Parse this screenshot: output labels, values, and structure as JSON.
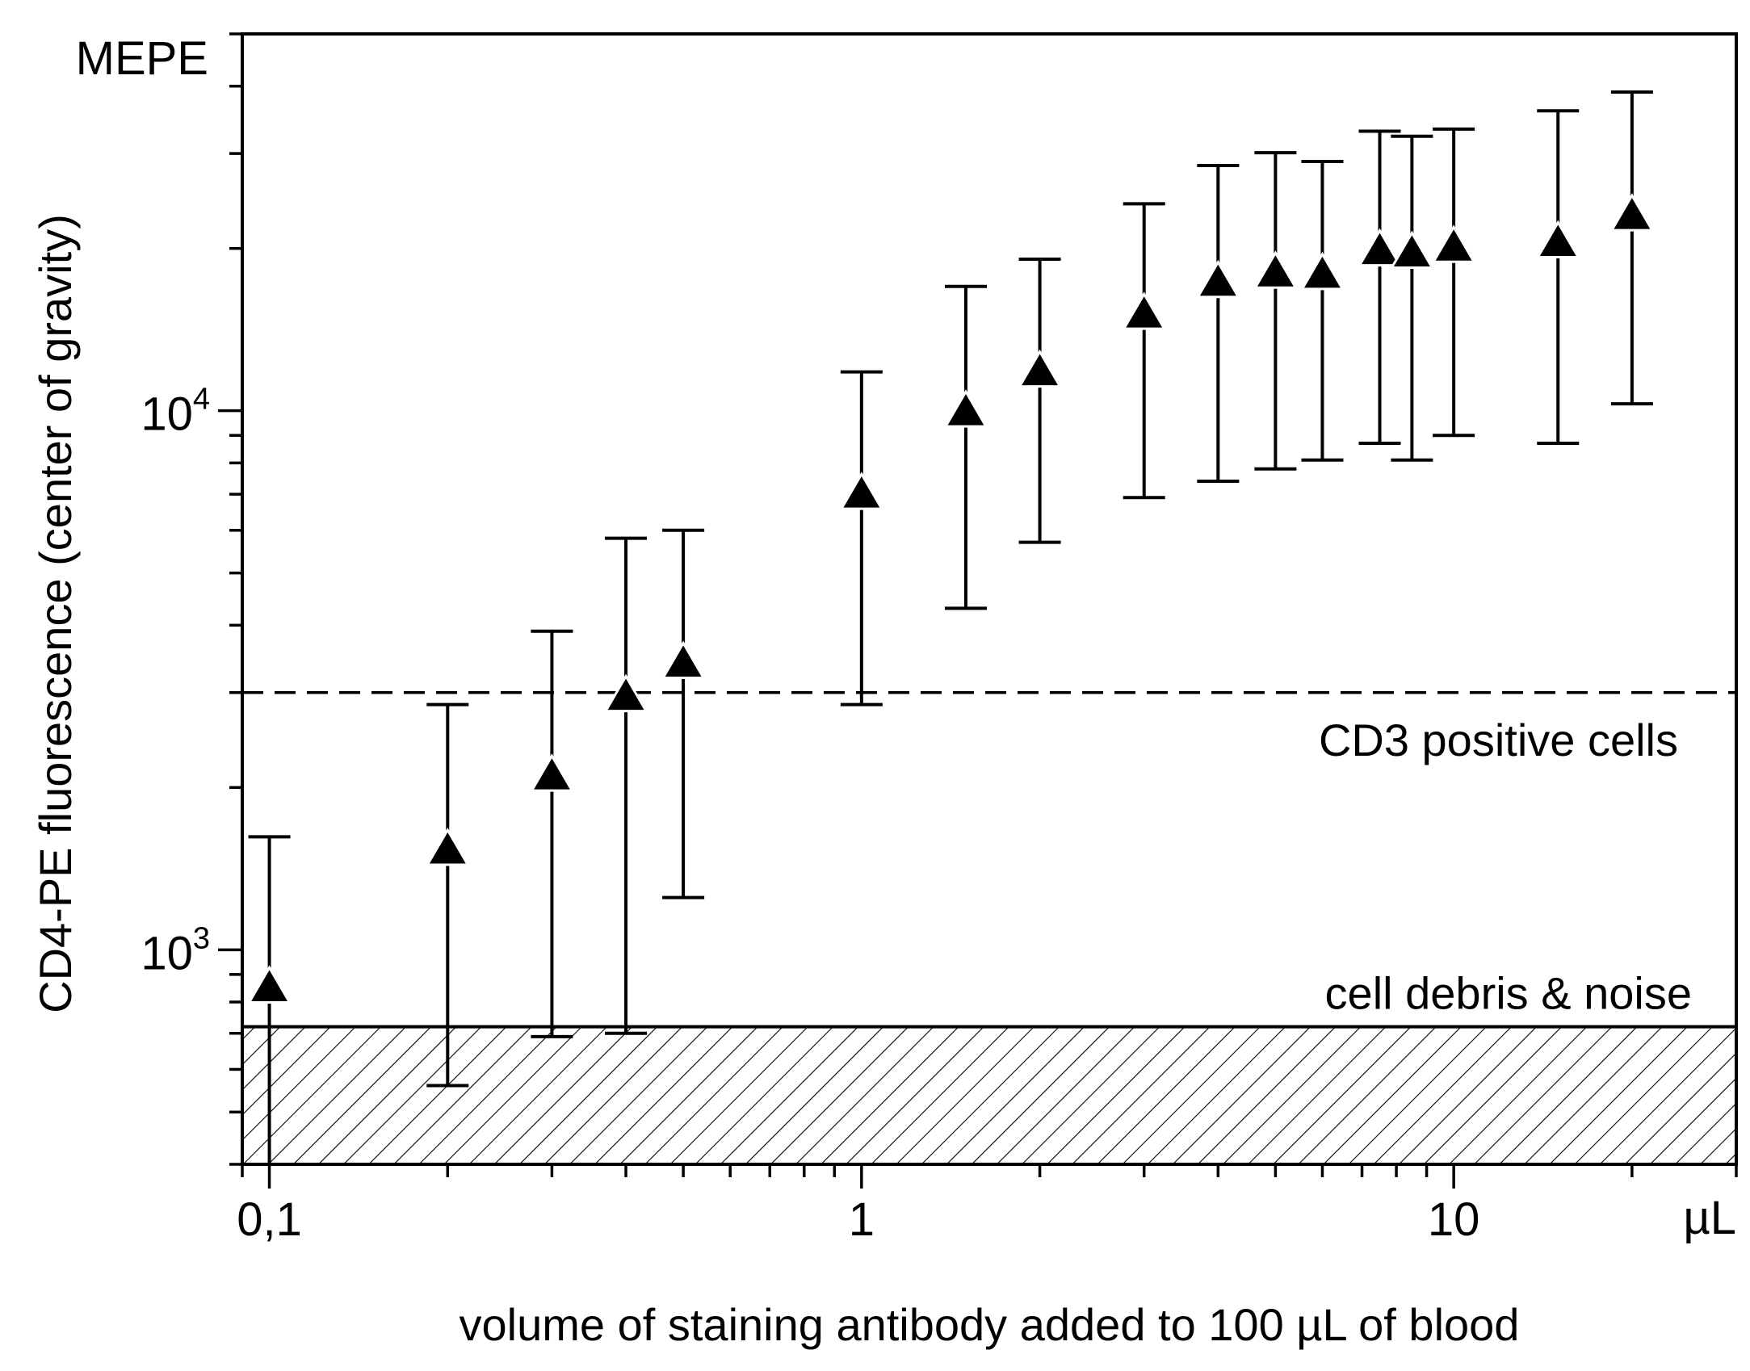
{
  "chart_data": {
    "type": "scatter",
    "title": "",
    "xlabel": "volume of staining antibody added to 100 µL of blood",
    "ylabel": "CD4-PE fluorescence (center of gravity)",
    "x_unit_label": "µL",
    "y_unit_label": "MEPE",
    "xscale": "log",
    "yscale": "log",
    "xlim": [
      0.09,
      30
    ],
    "ylim": [
      400,
      50000
    ],
    "x_ticks": [
      {
        "value": 0.1,
        "label": "0,1"
      },
      {
        "value": 1,
        "label": "1"
      },
      {
        "value": 10,
        "label": "10"
      }
    ],
    "y_ticks": [
      {
        "value": 1000,
        "base": "10",
        "exp": "3"
      },
      {
        "value": 10000,
        "base": "10",
        "exp": "4"
      }
    ],
    "grid": false,
    "marker": "filled-triangle",
    "series": [
      {
        "name": "CD4-PE fluorescence",
        "points": [
          {
            "x": 0.1,
            "y": 850,
            "low": 400,
            "high": 1620
          },
          {
            "x": 0.2,
            "y": 1530,
            "low": 560,
            "high": 2850
          },
          {
            "x": 0.3,
            "y": 2100,
            "low": 690,
            "high": 3900
          },
          {
            "x": 0.4,
            "y": 2950,
            "low": 700,
            "high": 5800
          },
          {
            "x": 0.5,
            "y": 3400,
            "low": 1250,
            "high": 6000
          },
          {
            "x": 1.0,
            "y": 7000,
            "low": 2850,
            "high": 11800
          },
          {
            "x": 1.5,
            "y": 9950,
            "low": 4300,
            "high": 17000
          },
          {
            "x": 2.0,
            "y": 11800,
            "low": 5700,
            "high": 19100
          },
          {
            "x": 3.0,
            "y": 15100,
            "low": 6900,
            "high": 24200
          },
          {
            "x": 4.0,
            "y": 17300,
            "low": 7400,
            "high": 28500
          },
          {
            "x": 5.0,
            "y": 18000,
            "low": 7800,
            "high": 30100
          },
          {
            "x": 6.0,
            "y": 17900,
            "low": 8100,
            "high": 29000
          },
          {
            "x": 7.5,
            "y": 19800,
            "low": 8700,
            "high": 33000
          },
          {
            "x": 8.5,
            "y": 19600,
            "low": 8100,
            "high": 32300
          },
          {
            "x": 10.0,
            "y": 20100,
            "low": 9000,
            "high": 33300
          },
          {
            "x": 15.0,
            "y": 20500,
            "low": 8700,
            "high": 36000
          },
          {
            "x": 20.0,
            "y": 23000,
            "low": 10300,
            "high": 39000
          }
        ]
      }
    ],
    "reference_lines": [
      {
        "type": "dashed",
        "y": 3000,
        "label": "CD3 positive cells"
      }
    ],
    "shaded_regions": [
      {
        "type": "hatched",
        "y_from": 400,
        "y_to": 720,
        "label": "cell debris & noise"
      }
    ]
  }
}
